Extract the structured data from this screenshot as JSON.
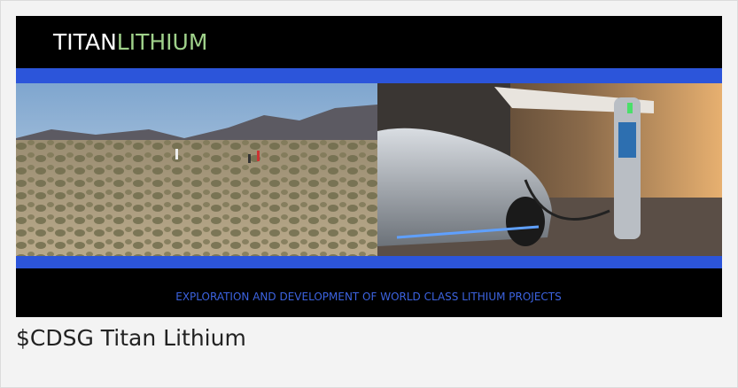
{
  "header": {
    "brand_primary": "TITAN",
    "brand_secondary": "LITHIUM"
  },
  "banner": {
    "tagline": "EXPLORATION AND DEVELOPMENT OF WORLD CLASS LITHIUM PROJECTS"
  },
  "caption": "$CDSG Titan Lithium"
}
